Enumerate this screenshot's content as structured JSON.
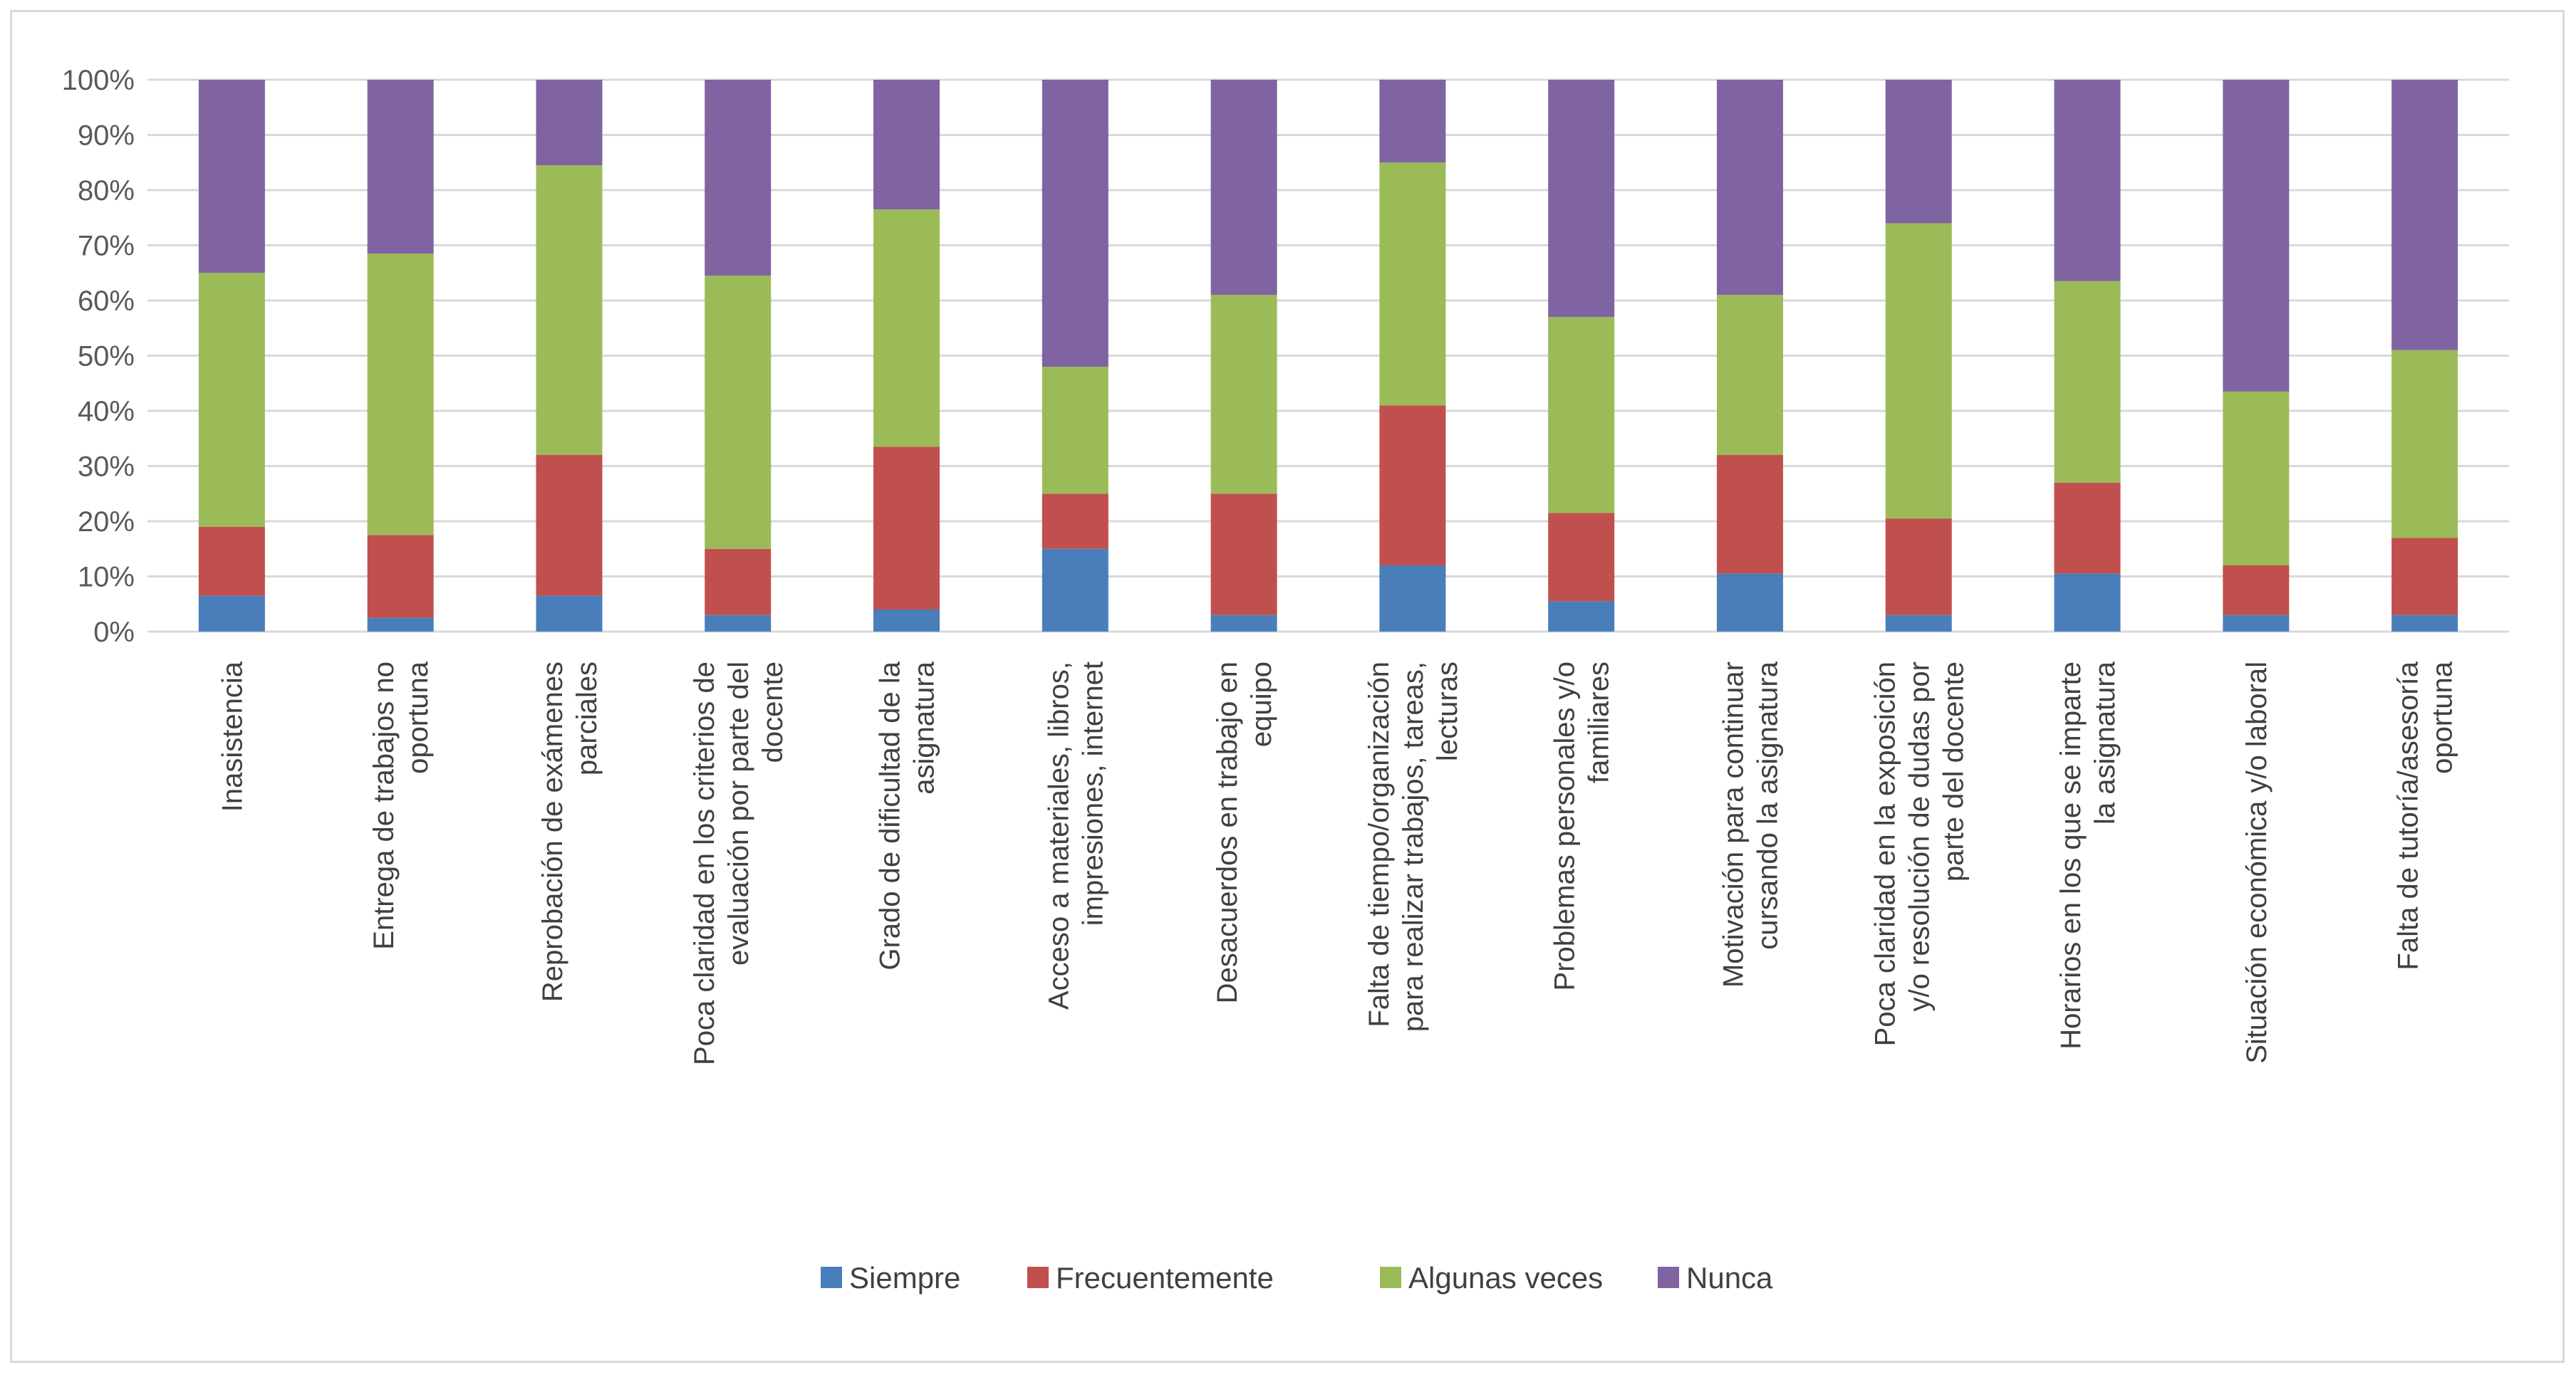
{
  "chart_data": {
    "type": "stacked-bar-100",
    "title": "",
    "xlabel": "",
    "ylabel": "",
    "ylim": [
      0,
      100
    ],
    "y_ticks": [
      "0%",
      "10%",
      "20%",
      "30%",
      "40%",
      "50%",
      "60%",
      "70%",
      "80%",
      "90%",
      "100%"
    ],
    "grid": true,
    "legend_position": "bottom",
    "categories": [
      [
        "Inasistencia"
      ],
      [
        "Entrega de trabajos no",
        "oportuna"
      ],
      [
        "Reprobación de exámenes",
        "parciales"
      ],
      [
        "Poca claridad en los criterios de",
        "evaluación por parte del",
        "docente"
      ],
      [
        "Grado de dificultad de la",
        "asignatura"
      ],
      [
        "Acceso a materiales, libros,",
        "impresiones, internet"
      ],
      [
        "Desacuerdos en trabajo en",
        "equipo"
      ],
      [
        "Falta de tiempo/organización",
        "para realizar trabajos, tareas,",
        "lecturas"
      ],
      [
        "Problemas personales y/o",
        "familiares"
      ],
      [
        "Motivación para continuar",
        "cursando la asignatura"
      ],
      [
        "Poca claridad en la exposición",
        "y/o resolución de dudas por",
        "parte del docente"
      ],
      [
        "Horarios en los que se imparte",
        "la asignatura"
      ],
      [
        "Situación económica y/o laboral"
      ],
      [
        "Falta de tutoría/asesoría",
        "oportuna"
      ]
    ],
    "series": [
      {
        "name": "Siempre",
        "color": "#4a7ebb",
        "values": [
          6.5,
          2.5,
          6.5,
          3,
          4,
          15,
          3,
          12,
          5.5,
          10.5,
          3,
          10.5,
          3,
          3
        ]
      },
      {
        "name": "Frecuentemente",
        "color": "#c0504d",
        "values": [
          12.5,
          15,
          25.5,
          12,
          29.5,
          10,
          22,
          29,
          16,
          21.5,
          17.5,
          16.5,
          9,
          14
        ]
      },
      {
        "name": "Algunas veces",
        "color": "#9bbb59",
        "values": [
          46,
          51,
          52.5,
          49.5,
          43,
          23,
          36,
          44,
          35.5,
          29,
          53.5,
          36.5,
          31.5,
          34
        ]
      },
      {
        "name": "Nunca",
        "color": "#8064a2",
        "values": [
          35,
          31.5,
          15.5,
          35.5,
          23.5,
          52,
          39,
          15,
          43,
          39,
          26,
          36.5,
          56.5,
          49
        ]
      }
    ]
  }
}
